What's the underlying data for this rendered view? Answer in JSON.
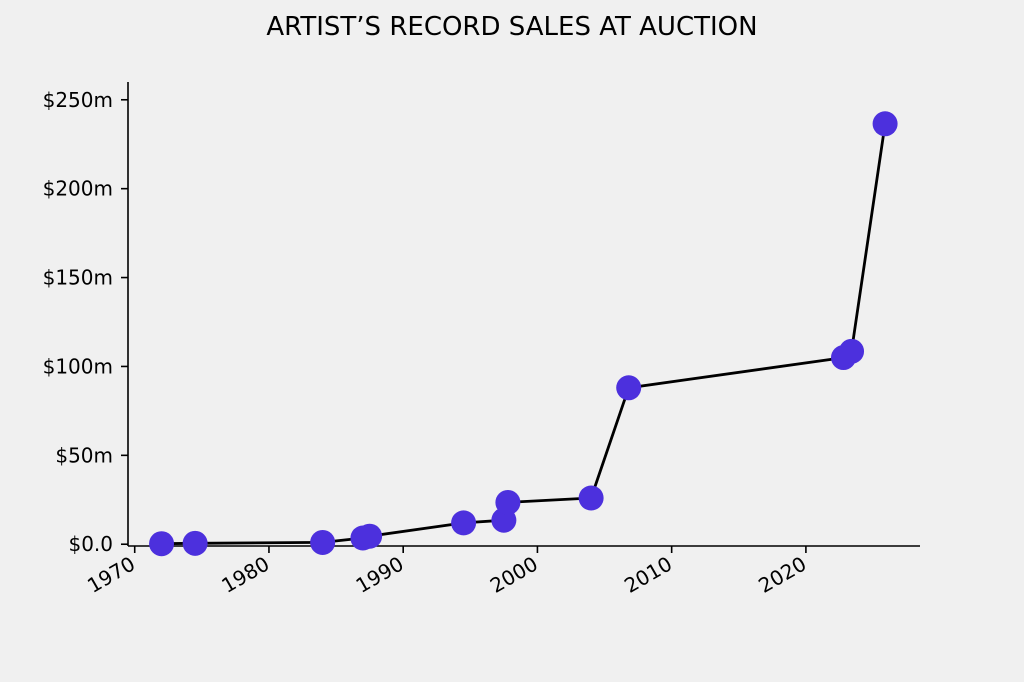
{
  "chart_data": {
    "type": "line",
    "title": "ARTIST’S RECORD SALES AT AUCTION",
    "xlabel": "",
    "ylabel": "",
    "x_ticks": [
      1970,
      1980,
      1990,
      2000,
      2010,
      2020
    ],
    "y_ticks": [
      {
        "value": 0,
        "label": "$0.0"
      },
      {
        "value": 50,
        "label": "$50m"
      },
      {
        "value": 100,
        "label": "$100m"
      },
      {
        "value": 150,
        "label": "$150m"
      },
      {
        "value": 200,
        "label": "$200m"
      },
      {
        "value": 250,
        "label": "$250m"
      }
    ],
    "xlim": [
      1969.5,
      2028.5
    ],
    "ylim": [
      -1,
      260
    ],
    "grid": false,
    "series": [
      {
        "x": [
          1972.0,
          1974.5,
          1984.0,
          1987.0,
          1987.5,
          1994.5,
          1997.5,
          1997.8,
          2004.0,
          2006.8,
          2022.8,
          2023.4,
          2025.9
        ],
        "y": [
          0.3,
          0.5,
          1.0,
          3.5,
          4.5,
          12.0,
          13.5,
          23.5,
          26.0,
          88.0,
          105.0,
          108.5,
          236.5
        ],
        "line_color": "#000000",
        "marker_color": "#4c30dd"
      }
    ]
  }
}
